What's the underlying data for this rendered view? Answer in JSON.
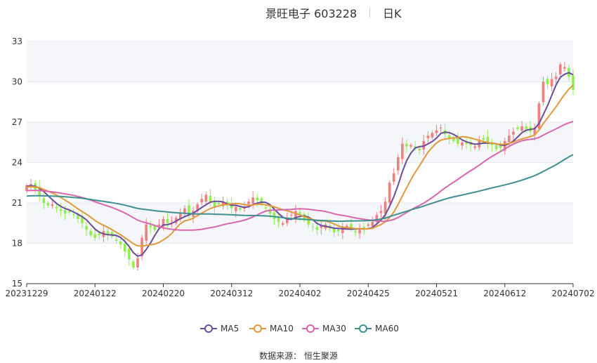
{
  "title": {
    "main": "景旺电子 603228",
    "sub": "日K"
  },
  "source": "数据来源：  恒生聚源",
  "colors": {
    "up": "#f08080",
    "down": "#90ee50",
    "ma5": "#6b4c9a",
    "ma10": "#e09a3c",
    "ma30": "#d966ad",
    "ma60": "#3f8f8f",
    "grid": "#e4e8f0",
    "band": "#f5f6fa",
    "axis": "#333333"
  },
  "chart_data": {
    "type": "candlestick",
    "ylim": [
      15,
      33
    ],
    "yticks": [
      15,
      18,
      21,
      24,
      27,
      30,
      33
    ],
    "xticks": [
      {
        "label": "20231229",
        "index": 0
      },
      {
        "label": "20240122",
        "index": 16
      },
      {
        "label": "20240220",
        "index": 32
      },
      {
        "label": "20240312",
        "index": 48
      },
      {
        "label": "20240402",
        "index": 64
      },
      {
        "label": "20240425",
        "index": 80
      },
      {
        "label": "20240521",
        "index": 96
      },
      {
        "label": "20240612",
        "index": 112
      },
      {
        "label": "20240702",
        "index": 128
      }
    ],
    "grid": true,
    "legend_position": "bottom-center",
    "candle_count": 129,
    "close": [
      22.3,
      22.4,
      22.0,
      21.5,
      21.0,
      20.8,
      20.9,
      20.6,
      20.4,
      20.2,
      20.3,
      20.1,
      19.8,
      19.5,
      19.0,
      18.6,
      18.4,
      18.6,
      18.9,
      18.7,
      18.5,
      18.2,
      17.9,
      17.4,
      16.8,
      16.2,
      16.9,
      18.4,
      19.4,
      19.2,
      19.0,
      19.4,
      19.8,
      19.5,
      19.7,
      19.9,
      20.2,
      20.6,
      20.1,
      20.4,
      20.9,
      21.3,
      21.6,
      21.1,
      20.7,
      20.9,
      21.1,
      20.8,
      20.6,
      20.7,
      20.5,
      20.7,
      21.1,
      21.4,
      21.2,
      20.9,
      20.6,
      20.2,
      19.8,
      19.6,
      19.5,
      19.9,
      20.1,
      20.4,
      20.1,
      19.7,
      19.4,
      19.2,
      19.0,
      19.3,
      19.4,
      19.1,
      18.8,
      18.9,
      19.2,
      19.3,
      19.1,
      18.8,
      19.0,
      19.1,
      19.4,
      19.6,
      20.1,
      20.4,
      21.1,
      22.5,
      23.2,
      24.4,
      25.4,
      25.2,
      25.3,
      25.1,
      24.9,
      25.6,
      26.0,
      26.2,
      26.4,
      26.6,
      26.1,
      25.8,
      25.6,
      25.4,
      25.5,
      25.4,
      25.3,
      25.2,
      25.6,
      25.7,
      25.4,
      25.3,
      25.0,
      25.1,
      25.6,
      26.0,
      26.3,
      26.5,
      26.7,
      26.5,
      26.3,
      26.6,
      28.4,
      30.0,
      29.8,
      30.2,
      30.4,
      31.3,
      31.1,
      30.4,
      29.4
    ]
  },
  "legend": [
    {
      "label": "MA5",
      "key": "ma5"
    },
    {
      "label": "MA10",
      "key": "ma10"
    },
    {
      "label": "MA30",
      "key": "ma30"
    },
    {
      "label": "MA60",
      "key": "ma60"
    }
  ]
}
